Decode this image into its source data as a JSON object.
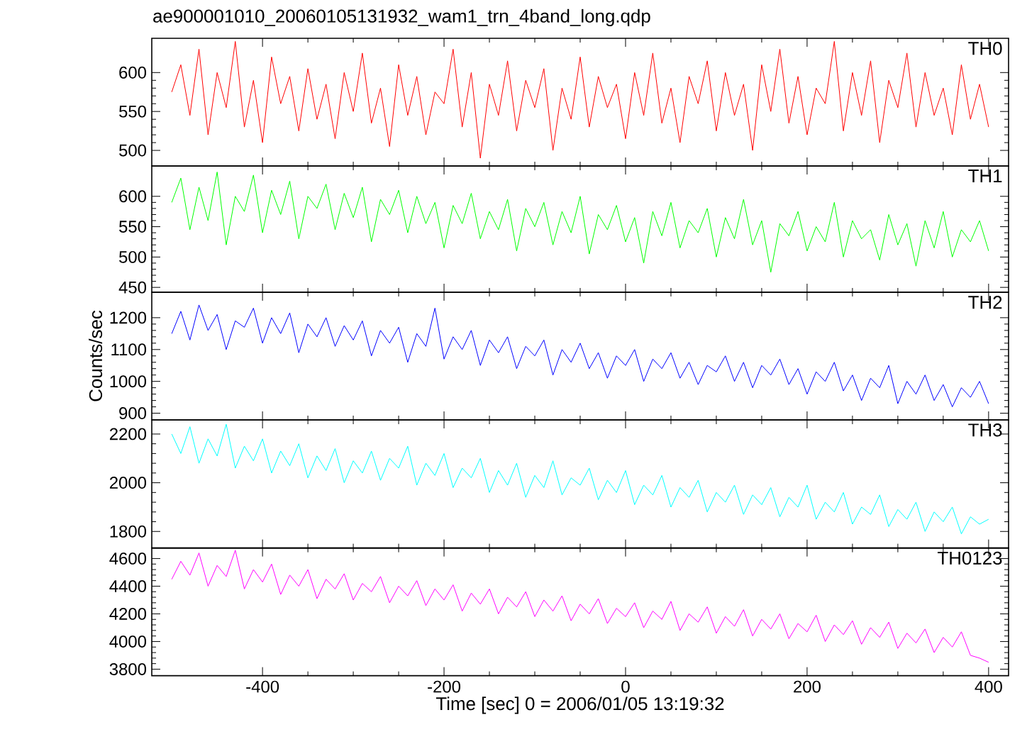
{
  "chart_data": [
    {
      "type": "line",
      "title": "ae900001010_20060105131932_wam1_trn_4band_long.qdp",
      "annotations": [
        "TH0"
      ],
      "tick_labels": "y",
      "x": [
        -500,
        -490,
        -480,
        -470,
        -460,
        -450,
        -440,
        -430,
        -420,
        -410,
        -400,
        -390,
        -380,
        -370,
        -360,
        -350,
        -340,
        -330,
        -320,
        -310,
        -300,
        -290,
        -280,
        -270,
        -260,
        -250,
        -240,
        -230,
        -220,
        -210,
        -200,
        -190,
        -180,
        -170,
        -160,
        -150,
        -140,
        -130,
        -120,
        -110,
        -100,
        -90,
        -80,
        -70,
        -60,
        -50,
        -40,
        -30,
        -20,
        -10,
        0,
        10,
        20,
        30,
        40,
        50,
        60,
        70,
        80,
        90,
        100,
        110,
        120,
        130,
        140,
        150,
        160,
        170,
        180,
        190,
        200,
        210,
        220,
        230,
        240,
        250,
        260,
        270,
        280,
        290,
        300,
        310,
        320,
        330,
        340,
        350,
        360,
        370,
        380,
        390,
        400
      ],
      "series": [
        {
          "color": "#ff0000",
          "values": [
            575,
            610,
            545,
            630,
            520,
            600,
            555,
            640,
            530,
            590,
            510,
            620,
            560,
            595,
            525,
            605,
            540,
            585,
            515,
            600,
            550,
            625,
            535,
            580,
            505,
            610,
            545,
            595,
            520,
            575,
            560,
            630,
            530,
            600,
            490,
            585,
            545,
            615,
            525,
            590,
            555,
            605,
            500,
            580,
            540,
            620,
            530,
            595,
            555,
            585,
            515,
            600,
            545,
            625,
            535,
            580,
            510,
            595,
            560,
            615,
            525,
            600,
            545,
            585,
            500,
            610,
            550,
            630,
            535,
            595,
            520,
            580,
            560,
            640,
            525,
            600,
            545,
            615,
            510,
            590,
            555,
            625,
            530,
            600,
            545,
            580,
            520,
            610,
            540,
            585,
            530
          ]
        }
      ],
      "xlim": [
        -522,
        422
      ],
      "xticks": [
        -400,
        -200,
        0,
        200,
        400
      ],
      "ylim": [
        480,
        644
      ],
      "yticks": [
        500,
        550,
        600
      ]
    },
    {
      "type": "line",
      "annotations": [
        "TH1"
      ],
      "tick_labels": "y",
      "x": [
        -500,
        -490,
        -480,
        -470,
        -460,
        -450,
        -440,
        -430,
        -420,
        -410,
        -400,
        -390,
        -380,
        -370,
        -360,
        -350,
        -340,
        -330,
        -320,
        -310,
        -300,
        -290,
        -280,
        -270,
        -260,
        -250,
        -240,
        -230,
        -220,
        -210,
        -200,
        -190,
        -180,
        -170,
        -160,
        -150,
        -140,
        -130,
        -120,
        -110,
        -100,
        -90,
        -80,
        -70,
        -60,
        -50,
        -40,
        -30,
        -20,
        -10,
        0,
        10,
        20,
        30,
        40,
        50,
        60,
        70,
        80,
        90,
        100,
        110,
        120,
        130,
        140,
        150,
        160,
        170,
        180,
        190,
        200,
        210,
        220,
        230,
        240,
        250,
        260,
        270,
        280,
        290,
        300,
        310,
        320,
        330,
        340,
        350,
        360,
        370,
        380,
        390,
        400
      ],
      "series": [
        {
          "color": "#00ff00",
          "values": [
            590,
            630,
            545,
            615,
            560,
            640,
            520,
            600,
            575,
            635,
            540,
            610,
            570,
            625,
            530,
            600,
            580,
            620,
            545,
            605,
            565,
            615,
            525,
            595,
            570,
            610,
            540,
            600,
            555,
            590,
            515,
            585,
            555,
            605,
            530,
            575,
            545,
            595,
            510,
            580,
            550,
            590,
            520,
            575,
            540,
            600,
            505,
            570,
            545,
            585,
            525,
            565,
            490,
            575,
            535,
            590,
            515,
            560,
            540,
            580,
            500,
            565,
            530,
            595,
            520,
            560,
            475,
            555,
            535,
            575,
            510,
            550,
            525,
            590,
            500,
            560,
            530,
            545,
            495,
            570,
            520,
            555,
            485,
            560,
            515,
            575,
            500,
            545,
            525,
            560,
            510
          ]
        }
      ],
      "xlim": [
        -522,
        422
      ],
      "xticks": [
        -400,
        -200,
        0,
        200,
        400
      ],
      "ylim": [
        442,
        650
      ],
      "yticks": [
        450,
        500,
        550,
        600
      ]
    },
    {
      "type": "line",
      "annotations": [
        "TH2"
      ],
      "tick_labels": "y",
      "ylabel": "Counts/sec",
      "x": [
        -500,
        -490,
        -480,
        -470,
        -460,
        -450,
        -440,
        -430,
        -420,
        -410,
        -400,
        -390,
        -380,
        -370,
        -360,
        -350,
        -340,
        -330,
        -320,
        -310,
        -300,
        -290,
        -280,
        -270,
        -260,
        -250,
        -240,
        -230,
        -220,
        -210,
        -200,
        -190,
        -180,
        -170,
        -160,
        -150,
        -140,
        -130,
        -120,
        -110,
        -100,
        -90,
        -80,
        -70,
        -60,
        -50,
        -40,
        -30,
        -20,
        -10,
        0,
        10,
        20,
        30,
        40,
        50,
        60,
        70,
        80,
        90,
        100,
        110,
        120,
        130,
        140,
        150,
        160,
        170,
        180,
        190,
        200,
        210,
        220,
        230,
        240,
        250,
        260,
        270,
        280,
        290,
        300,
        310,
        320,
        330,
        340,
        350,
        360,
        370,
        380,
        390,
        400
      ],
      "series": [
        {
          "color": "#0000ff",
          "values": [
            1150,
            1220,
            1130,
            1240,
            1160,
            1210,
            1100,
            1190,
            1170,
            1230,
            1120,
            1200,
            1150,
            1215,
            1090,
            1180,
            1140,
            1200,
            1110,
            1175,
            1130,
            1190,
            1080,
            1160,
            1120,
            1170,
            1060,
            1150,
            1110,
            1230,
            1070,
            1140,
            1100,
            1160,
            1050,
            1130,
            1090,
            1140,
            1040,
            1110,
            1080,
            1130,
            1020,
            1100,
            1060,
            1120,
            1040,
            1090,
            1010,
            1080,
            1050,
            1100,
            1000,
            1070,
            1040,
            1090,
            1010,
            1060,
            990,
            1050,
            1030,
            1080,
            1000,
            1060,
            980,
            1050,
            1020,
            1070,
            990,
            1040,
            960,
            1030,
            1000,
            1060,
            970,
            1020,
            940,
            1010,
            980,
            1050,
            930,
            1000,
            960,
            1020,
            940,
            990,
            920,
            980,
            950,
            1000,
            930
          ]
        }
      ],
      "xlim": [
        -522,
        422
      ],
      "xticks": [
        -400,
        -200,
        0,
        200,
        400
      ],
      "ylim": [
        879,
        1280
      ],
      "yticks": [
        900,
        1000,
        1100,
        1200
      ]
    },
    {
      "type": "line",
      "annotations": [
        "TH3"
      ],
      "tick_labels": "y",
      "x": [
        -500,
        -490,
        -480,
        -470,
        -460,
        -450,
        -440,
        -430,
        -420,
        -410,
        -400,
        -390,
        -380,
        -370,
        -360,
        -350,
        -340,
        -330,
        -320,
        -310,
        -300,
        -290,
        -280,
        -270,
        -260,
        -250,
        -240,
        -230,
        -220,
        -210,
        -200,
        -190,
        -180,
        -170,
        -160,
        -150,
        -140,
        -130,
        -120,
        -110,
        -100,
        -90,
        -80,
        -70,
        -60,
        -50,
        -40,
        -30,
        -20,
        -10,
        0,
        10,
        20,
        30,
        40,
        50,
        60,
        70,
        80,
        90,
        100,
        110,
        120,
        130,
        140,
        150,
        160,
        170,
        180,
        190,
        200,
        210,
        220,
        230,
        240,
        250,
        260,
        270,
        280,
        290,
        300,
        310,
        320,
        330,
        340,
        350,
        360,
        370,
        380,
        390,
        400
      ],
      "series": [
        {
          "color": "#00ffff",
          "values": [
            2200,
            2120,
            2230,
            2080,
            2180,
            2110,
            2240,
            2060,
            2150,
            2090,
            2180,
            2040,
            2130,
            2070,
            2160,
            2020,
            2110,
            2050,
            2140,
            2000,
            2090,
            2040,
            2130,
            2010,
            2100,
            2060,
            2150,
            1990,
            2080,
            2030,
            2120,
            1980,
            2060,
            2020,
            2100,
            1960,
            2050,
            1990,
            2080,
            1940,
            2030,
            1980,
            2090,
            1950,
            2020,
            1990,
            2060,
            1930,
            2010,
            1960,
            2050,
            1910,
            1990,
            1950,
            2030,
            1900,
            1980,
            1940,
            2010,
            1880,
            1960,
            1920,
            1990,
            1870,
            1950,
            1910,
            1980,
            1860,
            1940,
            1900,
            1990,
            1850,
            1920,
            1880,
            1960,
            1830,
            1900,
            1870,
            1950,
            1820,
            1890,
            1850,
            1920,
            1800,
            1880,
            1840,
            1900,
            1790,
            1860,
            1830,
            1850
          ]
        }
      ],
      "xlim": [
        -522,
        422
      ],
      "xticks": [
        -400,
        -200,
        0,
        200,
        400
      ],
      "ylim": [
        1732,
        2258
      ],
      "yticks": [
        1800,
        2000,
        2200
      ]
    },
    {
      "type": "line",
      "annotations": [
        "TH0123"
      ],
      "xlabel": "Time [sec] 0 = 2006/01/05 13:19:32",
      "x": [
        -500,
        -490,
        -480,
        -470,
        -460,
        -450,
        -440,
        -430,
        -420,
        -410,
        -400,
        -390,
        -380,
        -370,
        -360,
        -350,
        -340,
        -330,
        -320,
        -310,
        -300,
        -290,
        -280,
        -270,
        -260,
        -250,
        -240,
        -230,
        -220,
        -210,
        -200,
        -190,
        -180,
        -170,
        -160,
        -150,
        -140,
        -130,
        -120,
        -110,
        -100,
        -90,
        -80,
        -70,
        -60,
        -50,
        -40,
        -30,
        -20,
        -10,
        0,
        10,
        20,
        30,
        40,
        50,
        60,
        70,
        80,
        90,
        100,
        110,
        120,
        130,
        140,
        150,
        160,
        170,
        180,
        190,
        200,
        210,
        220,
        230,
        240,
        250,
        260,
        270,
        280,
        290,
        300,
        310,
        320,
        330,
        340,
        350,
        360,
        370,
        380,
        390,
        400
      ],
      "series": [
        {
          "color": "#ff00ff",
          "values": [
            4450,
            4580,
            4480,
            4640,
            4400,
            4550,
            4470,
            4660,
            4380,
            4520,
            4430,
            4560,
            4340,
            4480,
            4400,
            4520,
            4310,
            4450,
            4380,
            4490,
            4300,
            4420,
            4360,
            4470,
            4280,
            4400,
            4330,
            4440,
            4260,
            4380,
            4300,
            4410,
            4220,
            4350,
            4270,
            4380,
            4200,
            4320,
            4250,
            4360,
            4180,
            4300,
            4220,
            4330,
            4150,
            4270,
            4200,
            4310,
            4130,
            4240,
            4180,
            4280,
            4100,
            4220,
            4160,
            4290,
            4080,
            4200,
            4140,
            4250,
            4060,
            4180,
            4110,
            4230,
            4040,
            4160,
            4090,
            4200,
            4020,
            4130,
            4070,
            4190,
            4000,
            4120,
            4050,
            4150,
            3980,
            4100,
            4030,
            4140,
            3950,
            4060,
            3990,
            4090,
            3920,
            4030,
            3960,
            4070,
            3900,
            3880,
            3850
          ]
        }
      ],
      "xlim": [
        -522,
        422
      ],
      "xticks": [
        -400,
        -200,
        0,
        200,
        400
      ],
      "ylim": [
        3753,
        4676
      ],
      "yticks": [
        3800,
        4000,
        4200,
        4400,
        4600
      ]
    }
  ]
}
